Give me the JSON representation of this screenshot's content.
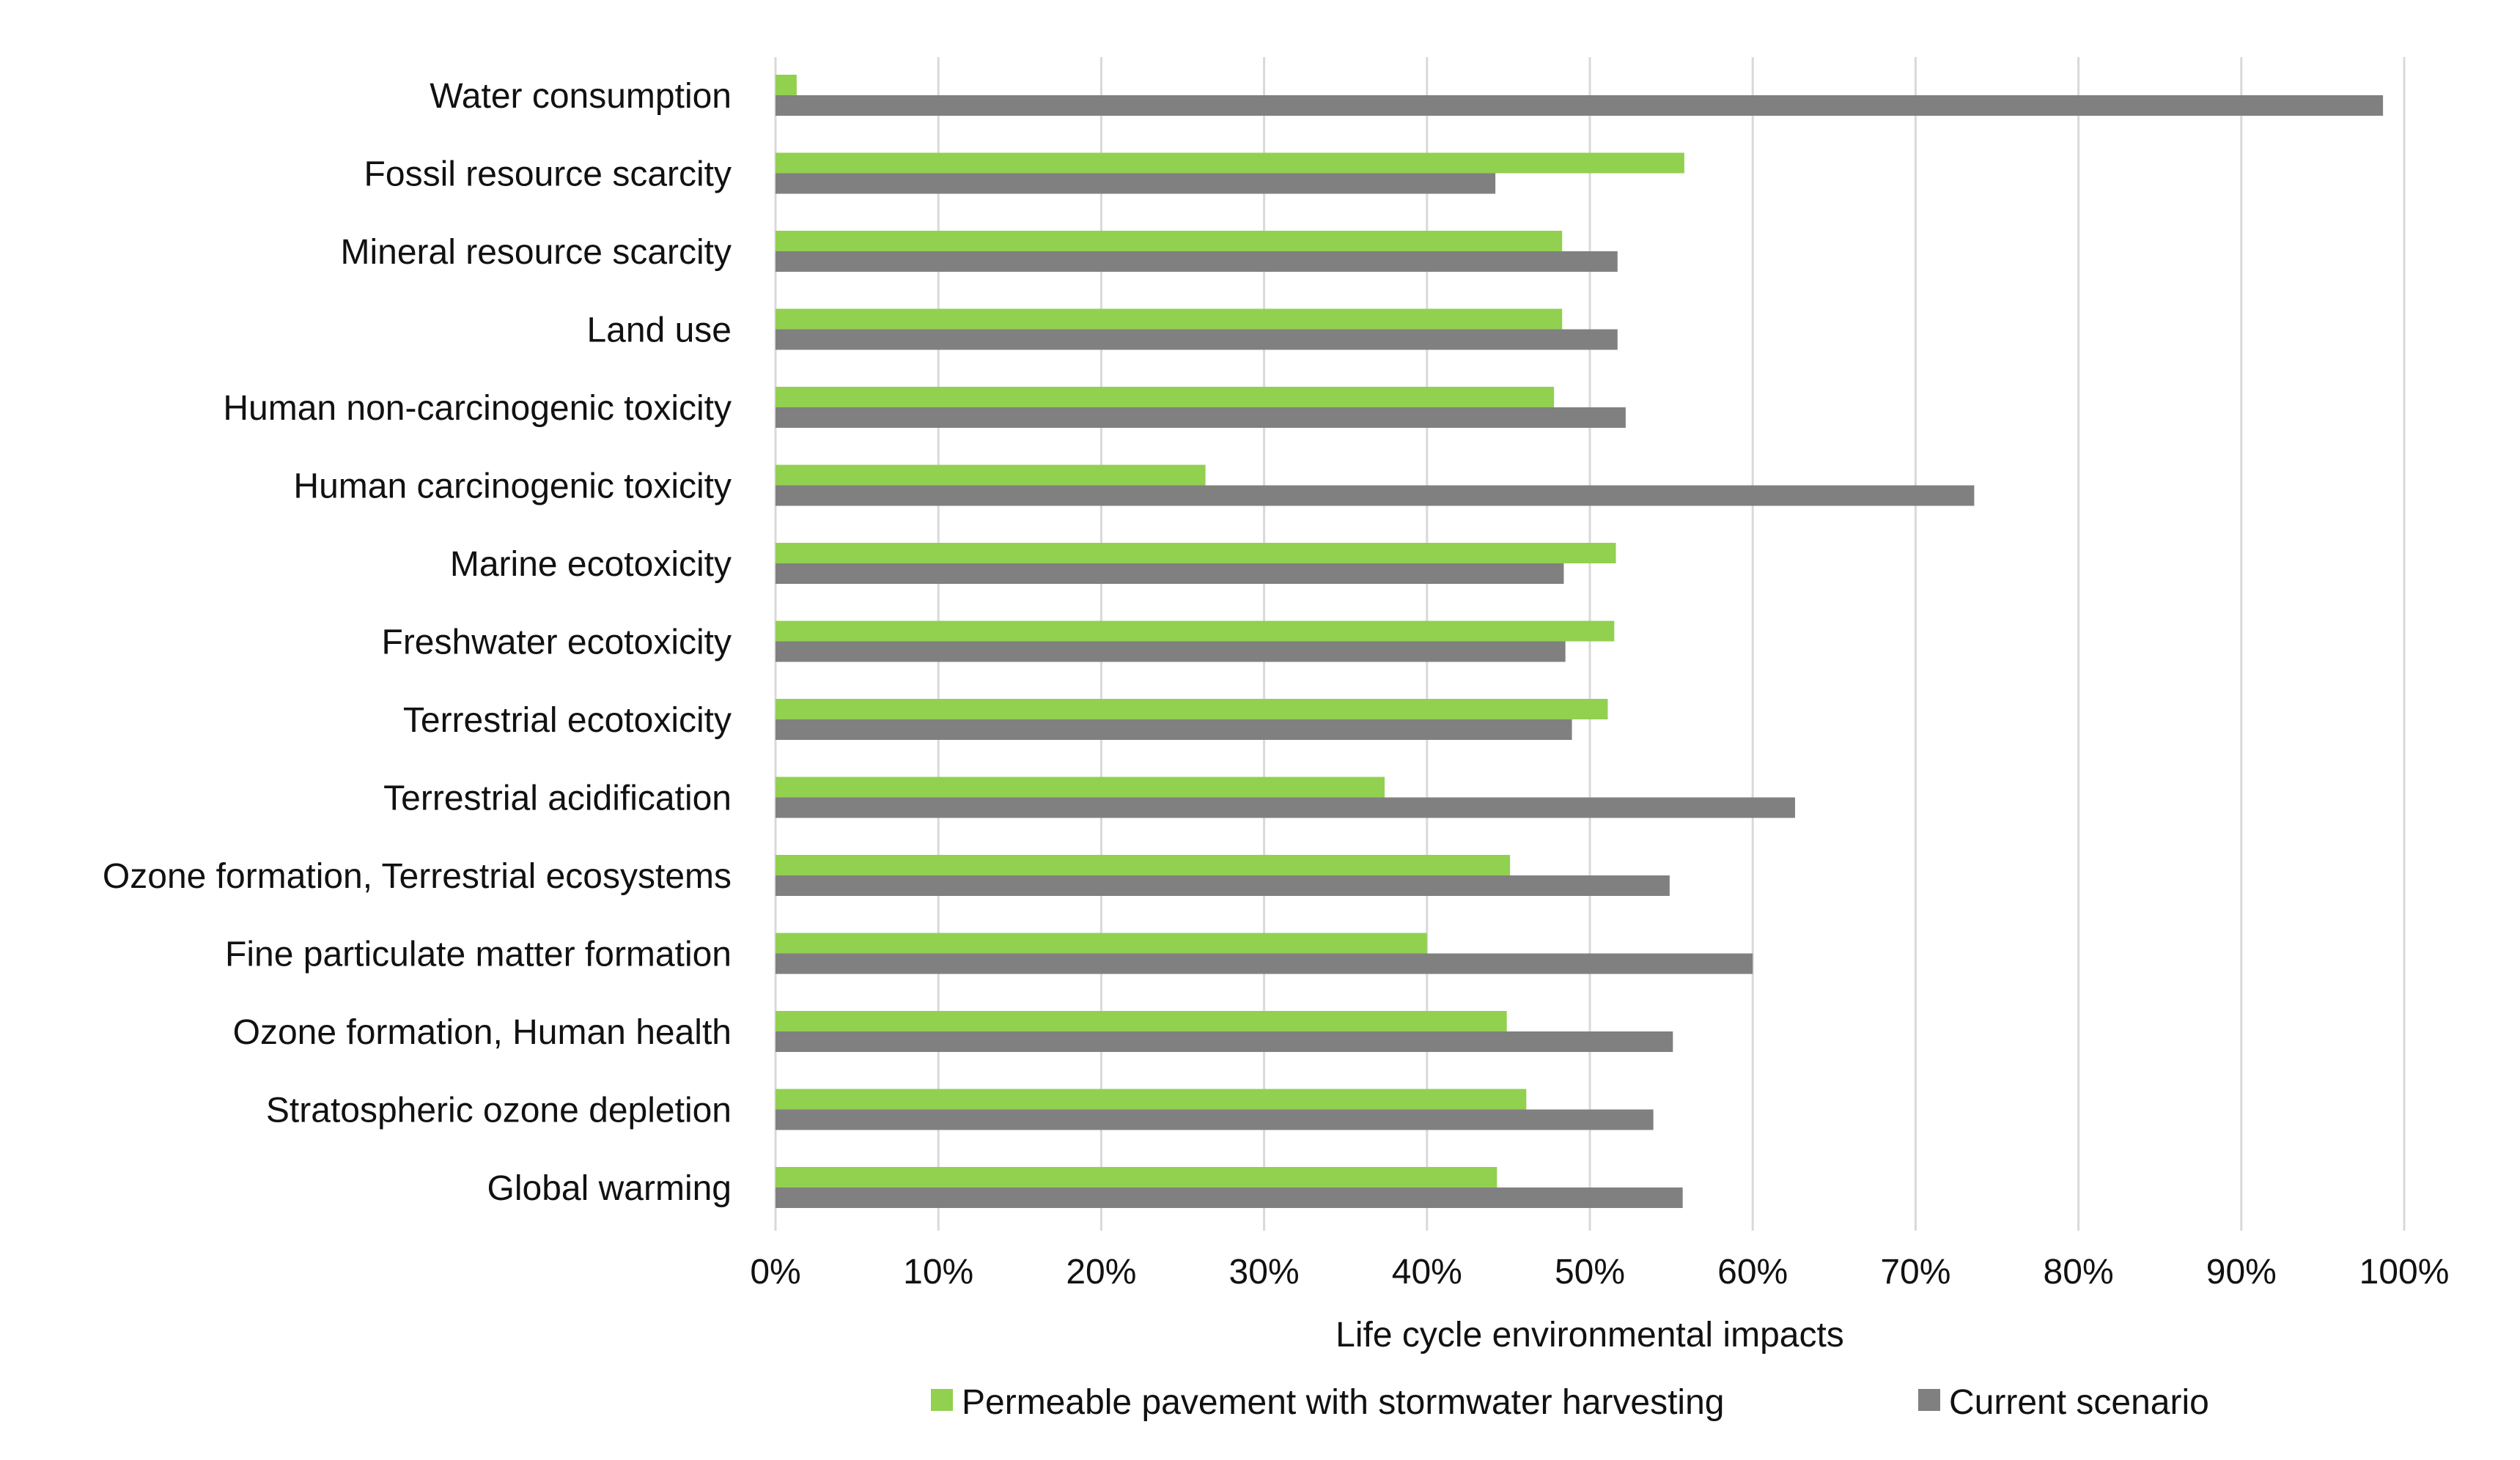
{
  "chart_data": {
    "type": "bar",
    "orientation": "horizontal",
    "title": "",
    "xlabel": "Life cycle environmental impacts",
    "ylabel": "",
    "xlim": [
      0,
      100
    ],
    "x_ticks": [
      0,
      10,
      20,
      30,
      40,
      50,
      60,
      70,
      80,
      90,
      100
    ],
    "x_tick_labels": [
      "0%",
      "10%",
      "20%",
      "30%",
      "40%",
      "50%",
      "60%",
      "70%",
      "80%",
      "90%",
      "100%"
    ],
    "grid": true,
    "legend_position": "bottom",
    "categories": [
      "Water consumption",
      "Fossil resource scarcity",
      "Mineral resource scarcity",
      "Land use",
      "Human non-carcinogenic toxicity",
      "Human carcinogenic toxicity",
      "Marine ecotoxicity",
      "Freshwater ecotoxicity",
      "Terrestrial ecotoxicity",
      "Terrestrial acidification",
      "Ozone formation, Terrestrial ecosystems",
      "Fine particulate matter formation",
      "Ozone formation, Human health",
      "Stratospheric ozone depletion",
      "Global warming"
    ],
    "series": [
      {
        "name": "Permeable pavement with stormwater harvesting",
        "color": "#92d050",
        "values": [
          1.3,
          55.8,
          48.3,
          48.3,
          47.8,
          26.4,
          51.6,
          51.5,
          51.1,
          37.4,
          45.1,
          40.0,
          44.9,
          46.1,
          44.3
        ]
      },
      {
        "name": "Current scenario",
        "color": "#808080",
        "values": [
          98.7,
          44.2,
          51.7,
          51.7,
          52.2,
          73.6,
          48.4,
          48.5,
          48.9,
          62.6,
          54.9,
          60.0,
          55.1,
          53.9,
          55.7
        ]
      }
    ]
  }
}
